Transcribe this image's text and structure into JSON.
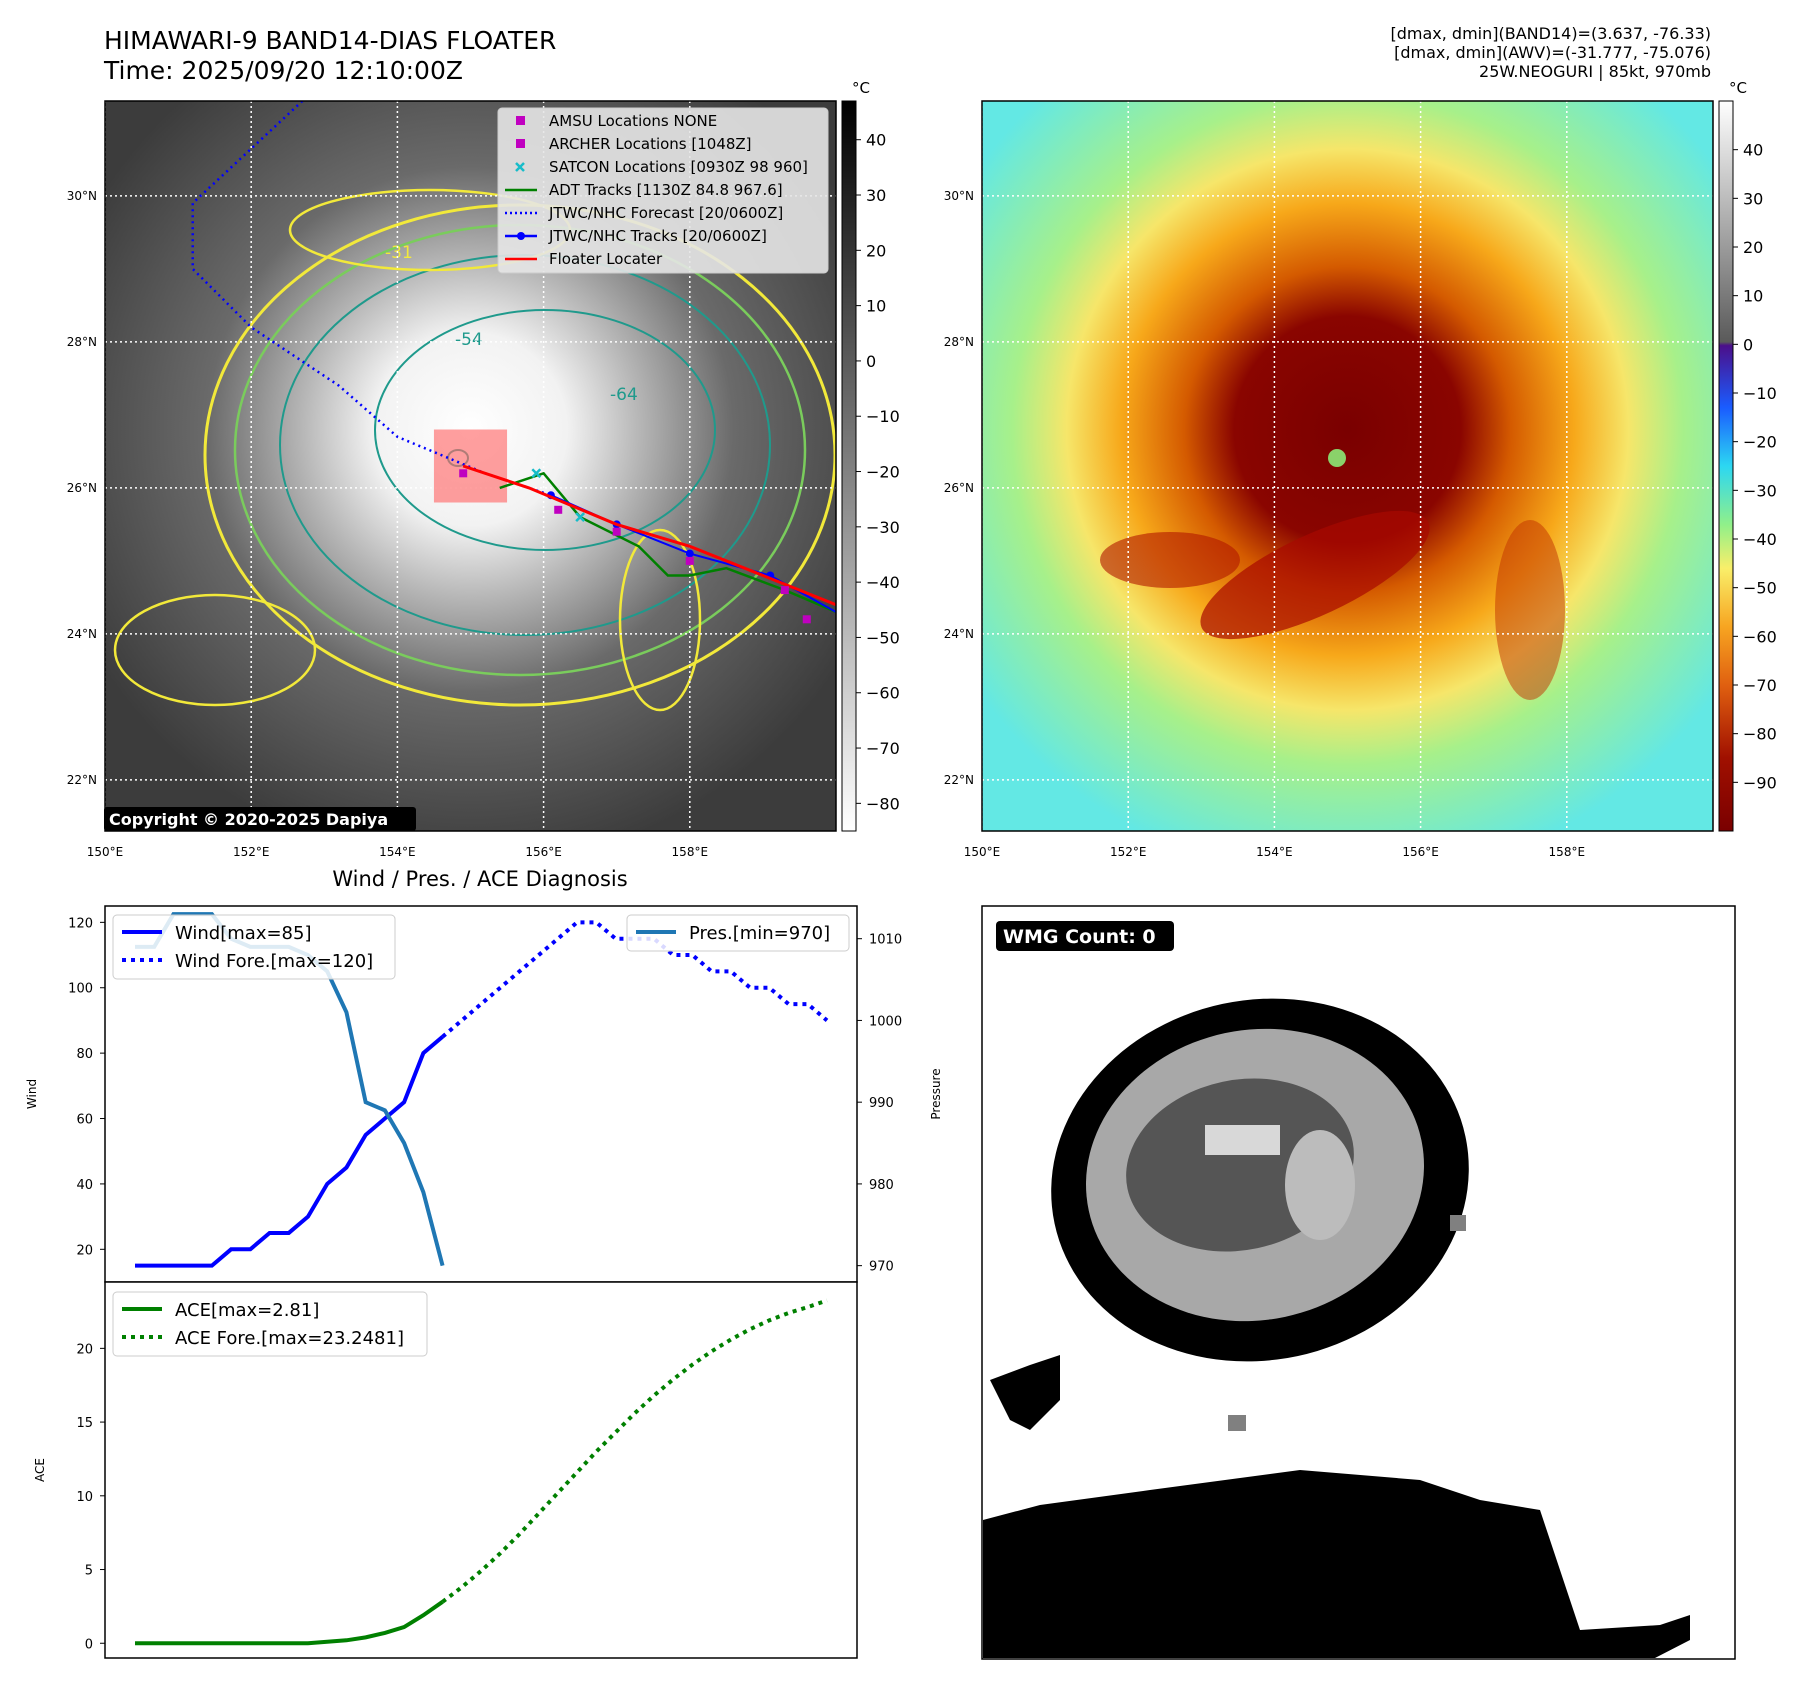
{
  "header": {
    "title_line1": "HIMAWARI-9 BAND14-DIAS FLOATER",
    "title_line2": "Time: 2025/09/20 12:10:00Z",
    "info_line1": "[dmax, dmin](BAND14)=(3.637, -76.33)",
    "info_line2": "[dmax, dmin](AWV)=(-31.777, -75.076)",
    "info_line3": "25W.NEOGURI | 85kt, 970mb"
  },
  "map": {
    "lat_ticks": [
      "30°N",
      "28°N",
      "26°N",
      "24°N",
      "22°N"
    ],
    "lon_ticks": [
      "150°E",
      "152°E",
      "154°E",
      "156°E",
      "158°E"
    ],
    "lat_range": [
      21.3,
      31.3
    ],
    "lon_range": [
      150,
      160
    ],
    "copyright": "Copyright © 2020-2025 Dapiya",
    "contour_labels": [
      "-31",
      "-54",
      "-64"
    ],
    "legend": [
      {
        "label": "AMSU Locations NONE",
        "marker": "square",
        "color": "#c000c0"
      },
      {
        "label": "ARCHER Locations [1048Z]",
        "marker": "square",
        "color": "#c000c0"
      },
      {
        "label": "SATCON Locations [0930Z 98 960]",
        "marker": "x",
        "color": "#17bcc9"
      },
      {
        "label": "ADT Tracks [1130Z 84.8 967.6]",
        "marker": "line",
        "color": "#008000"
      },
      {
        "label": "JTWC/NHC Forecast [20/0600Z]",
        "marker": "dotted",
        "color": "#0000ff"
      },
      {
        "label": "JTWC/NHC Tracks [20/0600Z]",
        "marker": "line-dot",
        "color": "#0000ff"
      },
      {
        "label": "Floater Locater",
        "marker": "line",
        "color": "#ff0000"
      }
    ],
    "forecast_track": [
      [
        152.7,
        31.3
      ],
      [
        151.2,
        29.9
      ],
      [
        151.2,
        29.0
      ],
      [
        152.0,
        28.2
      ],
      [
        153.2,
        27.4
      ],
      [
        154.0,
        26.7
      ],
      [
        155.2,
        26.2
      ],
      [
        156.1,
        25.9
      ]
    ],
    "best_track": [
      [
        156.1,
        25.9
      ],
      [
        157.0,
        25.5
      ],
      [
        158.0,
        25.1
      ],
      [
        159.1,
        24.8
      ],
      [
        160.0,
        24.3
      ]
    ],
    "adt_track": [
      [
        155.4,
        26.0
      ],
      [
        156.0,
        26.2
      ],
      [
        156.5,
        25.6
      ],
      [
        157.3,
        25.2
      ],
      [
        157.7,
        24.8
      ],
      [
        158.0,
        24.8
      ],
      [
        158.5,
        24.9
      ],
      [
        159.3,
        24.6
      ],
      [
        160.0,
        24.3
      ]
    ],
    "floater_track": [
      [
        154.9,
        26.3
      ],
      [
        155.8,
        26.0
      ],
      [
        157.0,
        25.5
      ],
      [
        158.0,
        25.2
      ],
      [
        159.0,
        24.8
      ],
      [
        160.0,
        24.4
      ]
    ],
    "archer_points": [
      [
        154.9,
        26.2
      ],
      [
        156.2,
        25.7
      ],
      [
        157.0,
        25.4
      ],
      [
        158.0,
        25.0
      ],
      [
        159.3,
        24.6
      ],
      [
        159.6,
        24.2
      ]
    ],
    "satcon_points": [
      [
        155.9,
        26.2
      ],
      [
        156.5,
        25.6
      ]
    ],
    "floater_box": {
      "lon": [
        154.5,
        155.5
      ],
      "lat": [
        25.8,
        26.8
      ]
    }
  },
  "colorbar_left": {
    "unit": "°C",
    "ticks": [
      "40",
      "30",
      "20",
      "10",
      "0",
      "−10",
      "−20",
      "−30",
      "−40",
      "−50",
      "−60",
      "−70",
      "−80"
    ]
  },
  "colorbar_right": {
    "unit": "°C",
    "ticks": [
      "40",
      "30",
      "20",
      "10",
      "0",
      "−10",
      "−20",
      "−30",
      "−40",
      "−50",
      "−60",
      "−70",
      "−80",
      "−90"
    ]
  },
  "diag": {
    "title": "Wind / Pres. / ACE Diagnosis",
    "wind_ylabel": "Wind",
    "pres_ylabel": "Pressure",
    "ace_ylabel": "ACE",
    "wind_yticks": [
      "120",
      "100",
      "80",
      "60",
      "40",
      "20"
    ],
    "pres_yticks": [
      "1010",
      "1000",
      "990",
      "980",
      "970"
    ],
    "ace_yticks": [
      "20",
      "15",
      "10",
      "5",
      "0"
    ],
    "legend_wind": "Wind[max=85]",
    "legend_wind_fore": "Wind Fore.[max=120]",
    "legend_pres": "Pres.[min=970]",
    "legend_ace": "ACE[max=2.81]",
    "legend_ace_fore": "ACE Fore.[max=23.2481]",
    "colors": {
      "wind": "#0000ff",
      "pres": "#1f77b4",
      "ace": "#008000"
    }
  },
  "wmg": {
    "label": "WMG Count: 0"
  },
  "chart_data": [
    {
      "type": "line",
      "title": "Wind / Pres. / ACE Diagnosis",
      "ylabel": "Wind",
      "ylim": [
        10,
        125
      ],
      "series": [
        {
          "name": "Wind[max=85]",
          "x": [
            0,
            1,
            2,
            3,
            4,
            5,
            6,
            7,
            8,
            9,
            10,
            11,
            12,
            13,
            14,
            15,
            16
          ],
          "values": [
            15,
            15,
            15,
            15,
            15,
            20,
            20,
            25,
            25,
            30,
            40,
            45,
            55,
            60,
            65,
            80,
            85
          ]
        },
        {
          "name": "Wind Fore.[max=120]",
          "x": [
            16,
            17,
            18,
            19,
            20,
            21,
            22,
            23,
            24,
            25,
            26,
            27,
            28,
            29,
            30,
            31,
            32,
            33,
            34,
            35,
            36
          ],
          "values": [
            85,
            90,
            95,
            100,
            105,
            110,
            115,
            120,
            120,
            115,
            115,
            115,
            110,
            110,
            105,
            105,
            100,
            100,
            95,
            95,
            90
          ]
        }
      ]
    },
    {
      "type": "line",
      "ylabel": "Pressure",
      "ylim": [
        968,
        1014
      ],
      "series": [
        {
          "name": "Pres.[min=970]",
          "x": [
            0,
            1,
            2,
            3,
            4,
            5,
            6,
            7,
            8,
            9,
            10,
            11,
            12,
            13,
            14,
            15,
            16
          ],
          "values": [
            1009,
            1009,
            1013,
            1013,
            1013,
            1010,
            1009,
            1009,
            1009,
            1008,
            1006,
            1001,
            990,
            989,
            985,
            979,
            970
          ]
        }
      ]
    },
    {
      "type": "line",
      "ylabel": "ACE",
      "ylim": [
        -1,
        24.5
      ],
      "series": [
        {
          "name": "ACE[max=2.81]",
          "x": [
            0,
            1,
            2,
            3,
            4,
            5,
            6,
            7,
            8,
            9,
            10,
            11,
            12,
            13,
            14,
            15,
            16
          ],
          "values": [
            0,
            0,
            0,
            0,
            0,
            0,
            0,
            0,
            0,
            0,
            0.1,
            0.2,
            0.4,
            0.7,
            1.1,
            1.9,
            2.81
          ]
        },
        {
          "name": "ACE Fore.[max=23.2481]",
          "x": [
            16,
            17,
            18,
            19,
            20,
            21,
            22,
            23,
            24,
            25,
            26,
            27,
            28,
            29,
            30,
            31,
            32,
            33,
            34,
            35,
            36
          ],
          "values": [
            2.81,
            3.8,
            4.9,
            6.1,
            7.4,
            8.8,
            10.2,
            11.6,
            13.0,
            14.3,
            15.6,
            16.8,
            17.9,
            18.9,
            19.8,
            20.6,
            21.3,
            21.9,
            22.4,
            22.8,
            23.2481
          ]
        }
      ]
    }
  ]
}
